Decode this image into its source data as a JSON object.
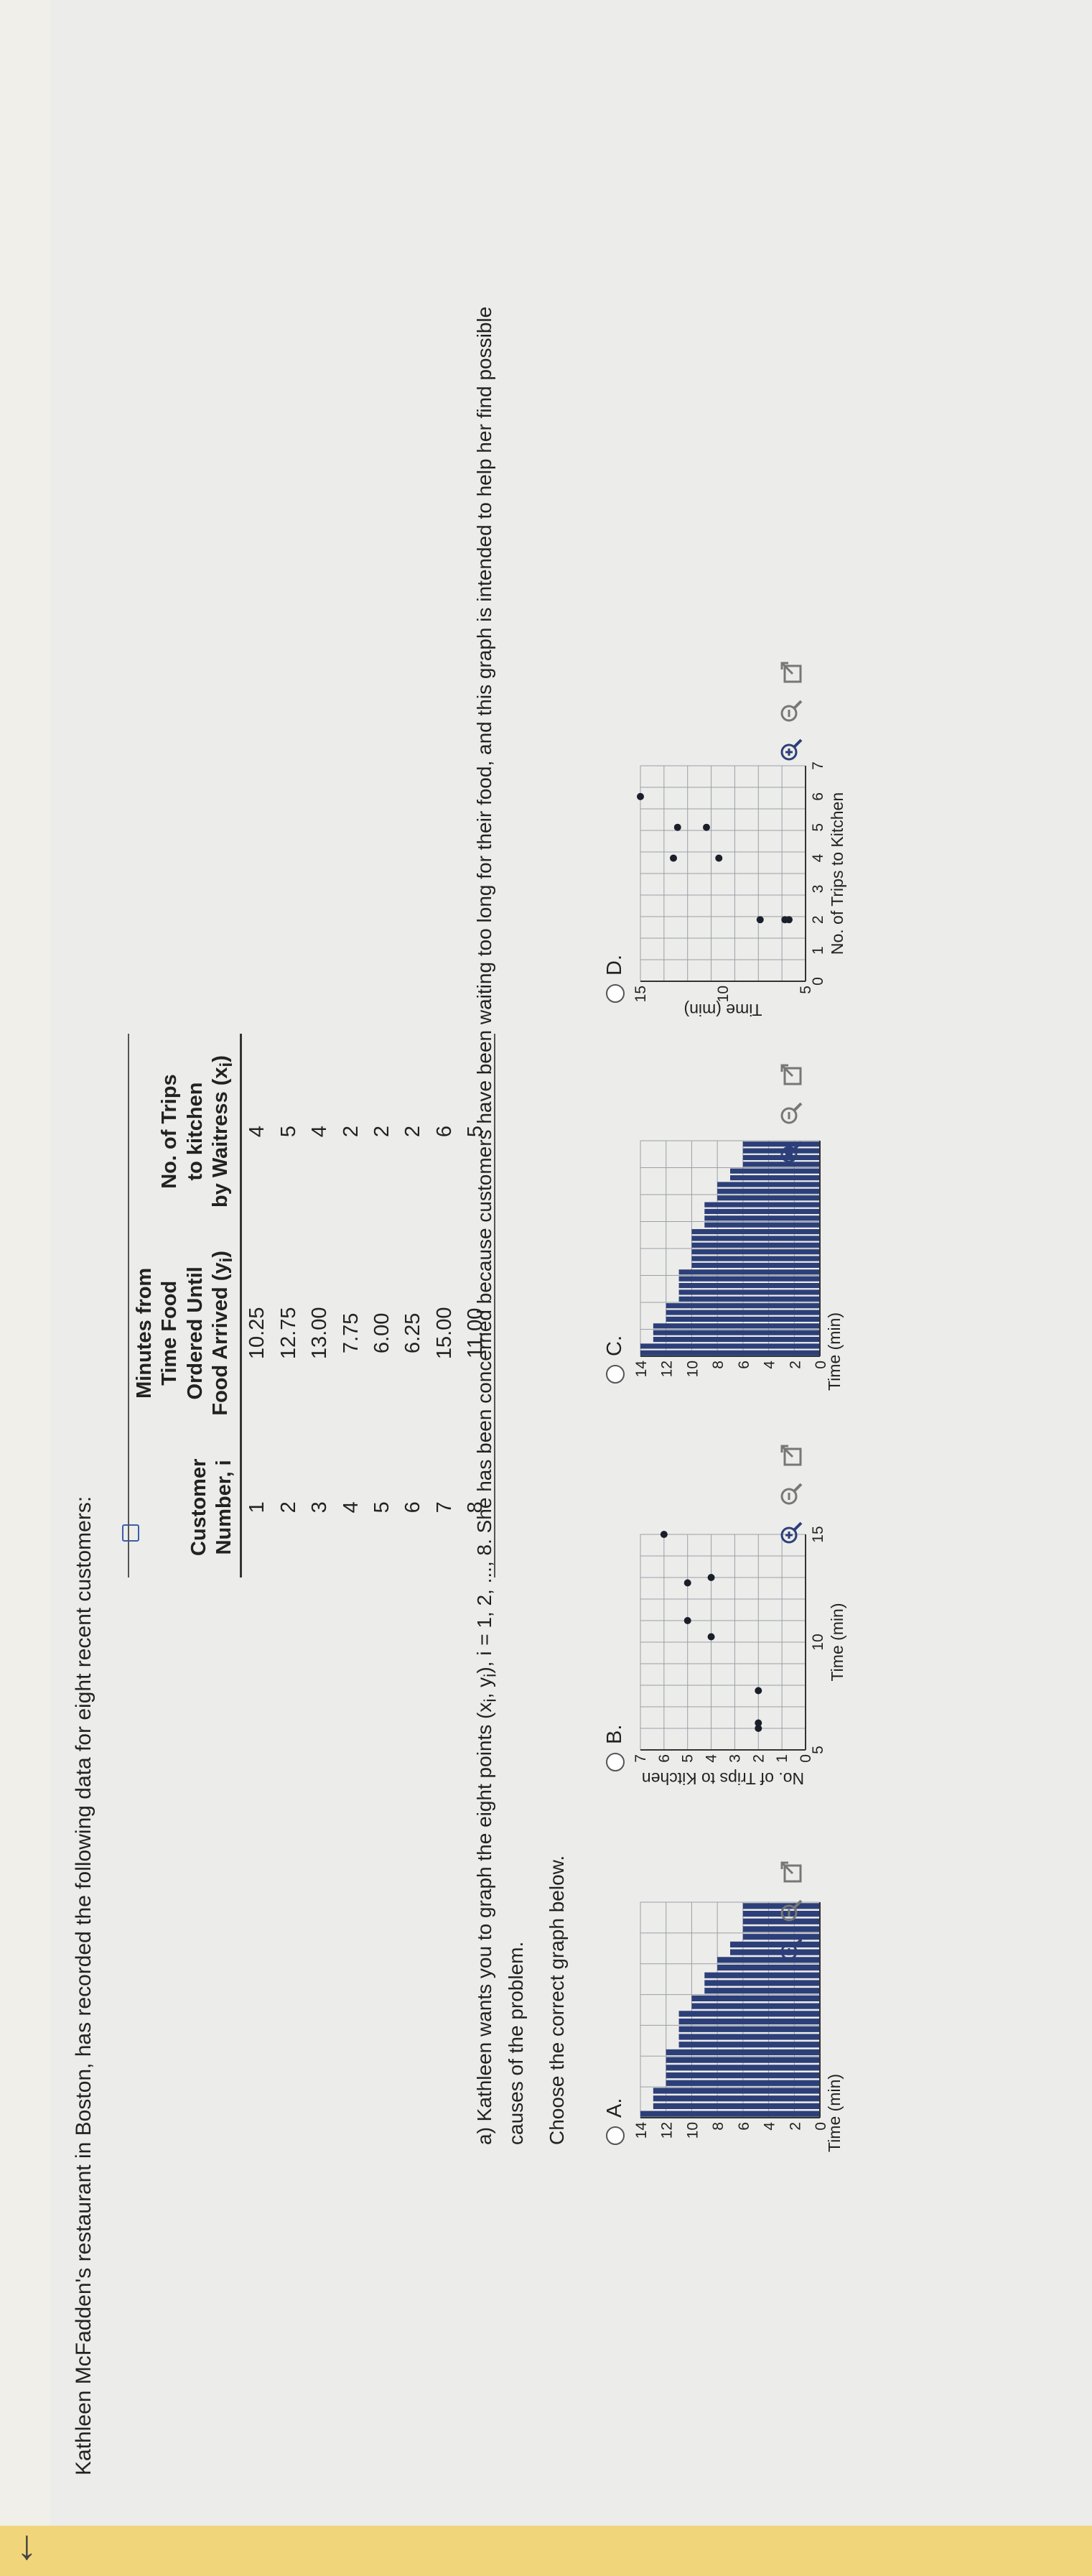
{
  "intro": "Kathleen McFadden's restaurant in Boston, has recorded the following data for eight recent customers:",
  "table": {
    "headers": {
      "customer": [
        "Customer",
        "Number, i"
      ],
      "minutes": [
        "Minutes from",
        "Time Food",
        "Ordered Until",
        "Food Arrived (y",
        ")"
      ],
      "trips": [
        "No. of Trips",
        "to kitchen",
        "by Waitress (x",
        ")"
      ],
      "sub": "i"
    },
    "rows": [
      {
        "i": "1",
        "y": "10.25",
        "x": "4"
      },
      {
        "i": "2",
        "y": "12.75",
        "x": "5"
      },
      {
        "i": "3",
        "y": "13.00",
        "x": "4"
      },
      {
        "i": "4",
        "y": "7.75",
        "x": "2"
      },
      {
        "i": "5",
        "y": "6.00",
        "x": "2"
      },
      {
        "i": "6",
        "y": "6.25",
        "x": "2"
      },
      {
        "i": "7",
        "y": "15.00",
        "x": "6"
      },
      {
        "i": "8",
        "y": "11.00",
        "x": "5"
      }
    ]
  },
  "question": {
    "pre": "a) Kathleen wants you to graph the eight points ",
    "formula": "(x",
    "sub1": "i",
    "mid": ", y",
    "sub2": "i",
    "close": ")",
    "post": ", i = 1, 2, ..., 8. She has been concerned because customers have been waiting too long for their food, and this graph is intended to help her find possible causes of the problem."
  },
  "choose": "Choose the correct graph below.",
  "options": {
    "A": "A.",
    "B": "B.",
    "C": "C.",
    "D": "D."
  },
  "colors": {
    "bar": "#2c3f78",
    "accent": "#f1d57a",
    "grid": "#9aa0a8"
  },
  "chart_data": [
    {
      "id": "A",
      "type": "bar",
      "orientation": "horizontal",
      "xlabel": "",
      "ylabel": "Time (min)",
      "ylim": [
        0,
        14
      ],
      "y_ticks": [
        "0",
        "2",
        "4",
        "6",
        "8",
        "10",
        "12",
        "14"
      ],
      "values": [
        15,
        13,
        13,
        13,
        12,
        12,
        12,
        12,
        12,
        11,
        11,
        11,
        11,
        11,
        10,
        10,
        9,
        9,
        9,
        8,
        8,
        7,
        7,
        6,
        6,
        6,
        6,
        6
      ]
    },
    {
      "id": "B",
      "type": "scatter",
      "xlabel": "Time (min)",
      "ylabel": "No. of Trips to Kitchen",
      "x_ticks": [
        "5",
        "10",
        "15"
      ],
      "y_ticks": [
        "0",
        "1",
        "2",
        "3",
        "4",
        "5",
        "6",
        "7"
      ],
      "xlim": [
        5,
        15
      ],
      "ylim": [
        0,
        7
      ],
      "x": [
        10.25,
        12.75,
        13.0,
        7.75,
        6.0,
        6.25,
        15.0,
        11.0
      ],
      "y": [
        4,
        5,
        4,
        2,
        2,
        2,
        6,
        5
      ]
    },
    {
      "id": "C",
      "type": "bar",
      "orientation": "horizontal",
      "xlabel": "",
      "ylabel": "Time (min)",
      "ylim": [
        0,
        14
      ],
      "y_ticks": [
        "0",
        "2",
        "4",
        "6",
        "8",
        "10",
        "12",
        "14"
      ],
      "values": [
        15,
        15,
        13,
        13,
        13,
        12,
        12,
        12,
        11,
        11,
        11,
        11,
        11,
        10,
        10,
        10,
        10,
        10,
        10,
        9,
        9,
        9,
        9,
        8,
        8,
        8,
        7,
        7,
        6,
        6,
        6,
        6
      ]
    },
    {
      "id": "D",
      "type": "scatter",
      "xlabel": "No. of Trips to Kitchen",
      "ylabel": "Time (min)",
      "x_ticks": [
        "0",
        "1",
        "2",
        "3",
        "4",
        "5",
        "6",
        "7"
      ],
      "y_ticks": [
        "5",
        "10",
        "15"
      ],
      "xlim": [
        0,
        7
      ],
      "ylim": [
        5,
        15
      ],
      "x": [
        4,
        5,
        4,
        2,
        2,
        2,
        6,
        5
      ],
      "y": [
        10.25,
        12.75,
        13.0,
        7.75,
        6.0,
        6.25,
        15.0,
        11.0
      ]
    }
  ]
}
